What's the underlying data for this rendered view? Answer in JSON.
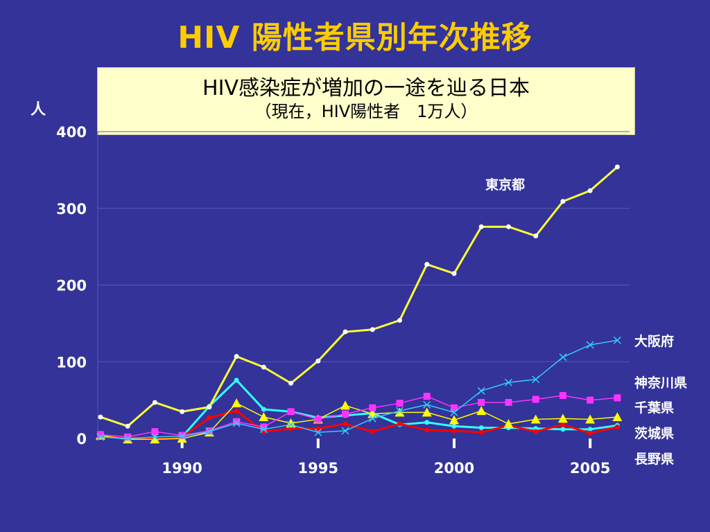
{
  "title": "HIV 陽性者県別年次推移",
  "banner": {
    "line1": "HIV感染症が増加の一途を辿る日本",
    "line2": "（現在，HIV陽性者　1万人）"
  },
  "y_unit": "人",
  "colors": {
    "background": "#333399",
    "title": "#ffcc00",
    "banner_bg": "#ffffcc",
    "tokyo": "#ffff33",
    "osaka": "#33ccff",
    "kanagawa": "#ff33ff",
    "chiba": "#ffff00",
    "ibaraki": "#ff0000",
    "nagano": "#33ffff"
  },
  "chart_data": {
    "type": "line",
    "x": [
      1987,
      1988,
      1989,
      1990,
      1991,
      1992,
      1993,
      1994,
      1995,
      1996,
      1997,
      1998,
      1999,
      2000,
      2001,
      2002,
      2003,
      2004,
      2005,
      2006
    ],
    "xticks": [
      1990,
      1995,
      2000,
      2005
    ],
    "xtick_labels": [
      "1990",
      "1995",
      "2000",
      "2005"
    ],
    "ylim": [
      0,
      400
    ],
    "yticks": [
      0,
      100,
      200,
      300,
      400
    ],
    "ytick_labels": [
      "0",
      "100",
      "200",
      "300",
      "400"
    ],
    "ylabel": "人",
    "grid": "horizontal",
    "series": [
      {
        "name": "東京都",
        "marker": "circle",
        "color": "#ffff33",
        "values": [
          28,
          16,
          47,
          35,
          41,
          107,
          93,
          72,
          101,
          139,
          142,
          154,
          227,
          215,
          276,
          276,
          264,
          309,
          323,
          354
        ]
      },
      {
        "name": "大阪府",
        "marker": "x",
        "color": "#33ccff",
        "values": [
          2,
          0,
          2,
          3,
          9,
          20,
          12,
          18,
          8,
          10,
          26,
          36,
          44,
          34,
          62,
          73,
          77,
          106,
          122,
          128
        ]
      },
      {
        "name": "神奈川県",
        "marker": "square",
        "color": "#ff33ff",
        "values": [
          5,
          2,
          9,
          4,
          10,
          22,
          15,
          35,
          25,
          32,
          40,
          46,
          55,
          40,
          47,
          47,
          51,
          56,
          50,
          53
        ]
      },
      {
        "name": "千葉県",
        "marker": "triangle",
        "color": "#ffff00",
        "values": [
          4,
          -1,
          -1,
          0,
          8,
          46,
          28,
          20,
          25,
          43,
          32,
          34,
          34,
          24,
          36,
          19,
          25,
          26,
          25,
          28
        ]
      },
      {
        "name": "茨城県",
        "marker": "circle",
        "color": "#ff0000",
        "values": [
          3,
          1,
          0,
          2,
          27,
          36,
          9,
          13,
          13,
          19,
          9,
          19,
          11,
          10,
          8,
          17,
          9,
          18,
          7,
          15
        ]
      },
      {
        "name": "長野県",
        "marker": "circle",
        "color": "#33ffff",
        "values": [
          3,
          0,
          0,
          2,
          42,
          76,
          38,
          35,
          27,
          30,
          33,
          18,
          21,
          16,
          14,
          14,
          13,
          12,
          12,
          17
        ]
      }
    ]
  }
}
